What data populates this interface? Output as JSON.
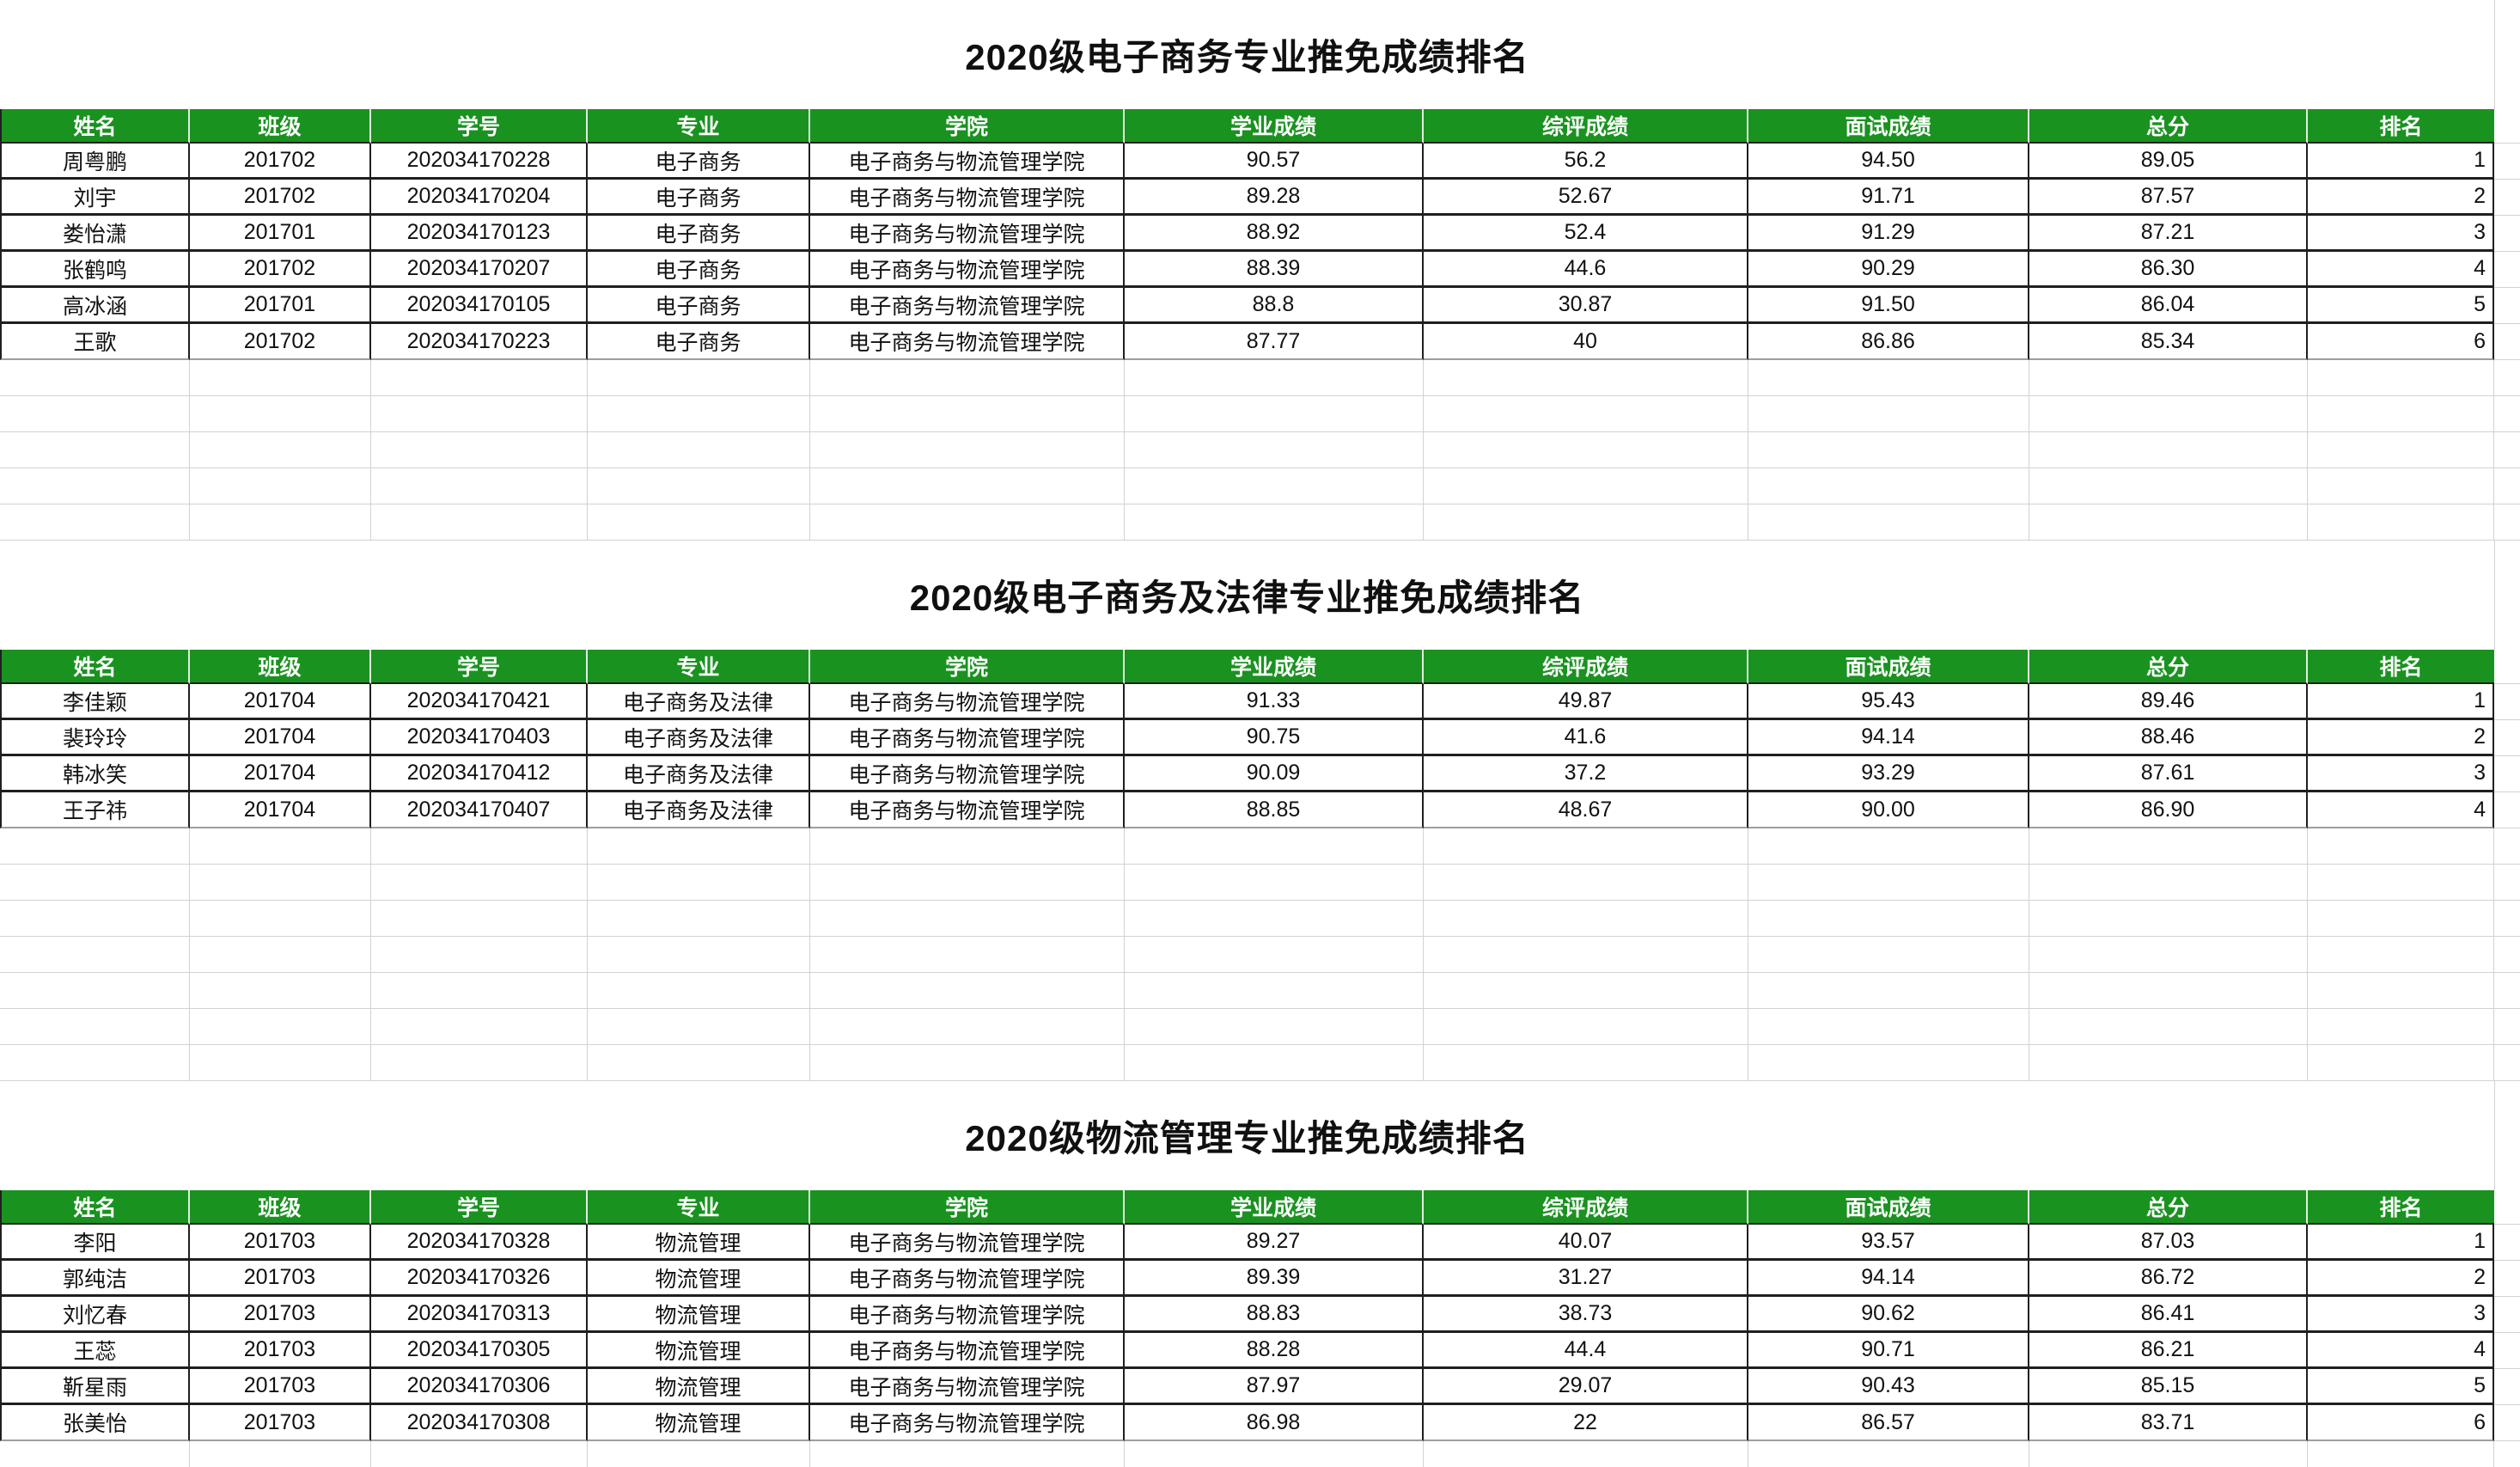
{
  "colors": {
    "header_bg": "#1a9220",
    "header_text": "#ffffff"
  },
  "columns": [
    "姓名",
    "班级",
    "学号",
    "专业",
    "学院",
    "学业成绩",
    "综评成绩",
    "面试成绩",
    "总分",
    "排名"
  ],
  "column_keys": [
    "name",
    "class_no",
    "student_id",
    "major",
    "college",
    "academic_score",
    "overall_score",
    "interview_score",
    "total_score",
    "rank"
  ],
  "tables": [
    {
      "title": "2020级电子商务专业推免成绩排名",
      "rows": [
        {
          "name": "周粤鹏",
          "class_no": "201702",
          "student_id": "202034170228",
          "major": "电子商务",
          "college": "电子商务与物流管理学院",
          "academic_score": "90.57",
          "overall_score": "56.2",
          "interview_score": "94.50",
          "total_score": "89.05",
          "rank": "1"
        },
        {
          "name": "刘宇",
          "class_no": "201702",
          "student_id": "202034170204",
          "major": "电子商务",
          "college": "电子商务与物流管理学院",
          "academic_score": "89.28",
          "overall_score": "52.67",
          "interview_score": "91.71",
          "total_score": "87.57",
          "rank": "2"
        },
        {
          "name": "娄怡潇",
          "class_no": "201701",
          "student_id": "202034170123",
          "major": "电子商务",
          "college": "电子商务与物流管理学院",
          "academic_score": "88.92",
          "overall_score": "52.4",
          "interview_score": "91.29",
          "total_score": "87.21",
          "rank": "3"
        },
        {
          "name": "张鹤鸣",
          "class_no": "201702",
          "student_id": "202034170207",
          "major": "电子商务",
          "college": "电子商务与物流管理学院",
          "academic_score": "88.39",
          "overall_score": "44.6",
          "interview_score": "90.29",
          "total_score": "86.30",
          "rank": "4"
        },
        {
          "name": "高冰涵",
          "class_no": "201701",
          "student_id": "202034170105",
          "major": "电子商务",
          "college": "电子商务与物流管理学院",
          "academic_score": "88.8",
          "overall_score": "30.87",
          "interview_score": "91.50",
          "total_score": "86.04",
          "rank": "5"
        },
        {
          "name": "王歌",
          "class_no": "201702",
          "student_id": "202034170223",
          "major": "电子商务",
          "college": "电子商务与物流管理学院",
          "academic_score": "87.77",
          "overall_score": "40",
          "interview_score": "86.86",
          "total_score": "85.34",
          "rank": "6"
        }
      ]
    },
    {
      "title": "2020级电子商务及法律专业推免成绩排名",
      "rows": [
        {
          "name": "李佳颖",
          "class_no": "201704",
          "student_id": "202034170421",
          "major": "电子商务及法律",
          "college": "电子商务与物流管理学院",
          "academic_score": "91.33",
          "overall_score": "49.87",
          "interview_score": "95.43",
          "total_score": "89.46",
          "rank": "1"
        },
        {
          "name": "裴玲玲",
          "class_no": "201704",
          "student_id": "202034170403",
          "major": "电子商务及法律",
          "college": "电子商务与物流管理学院",
          "academic_score": "90.75",
          "overall_score": "41.6",
          "interview_score": "94.14",
          "total_score": "88.46",
          "rank": "2"
        },
        {
          "name": "韩冰笑",
          "class_no": "201704",
          "student_id": "202034170412",
          "major": "电子商务及法律",
          "college": "电子商务与物流管理学院",
          "academic_score": "90.09",
          "overall_score": "37.2",
          "interview_score": "93.29",
          "total_score": "87.61",
          "rank": "3"
        },
        {
          "name": "王子祎",
          "class_no": "201704",
          "student_id": "202034170407",
          "major": "电子商务及法律",
          "college": "电子商务与物流管理学院",
          "academic_score": "88.85",
          "overall_score": "48.67",
          "interview_score": "90.00",
          "total_score": "86.90",
          "rank": "4"
        }
      ]
    },
    {
      "title": "2020级物流管理专业推免成绩排名",
      "rows": [
        {
          "name": "李阳",
          "class_no": "201703",
          "student_id": "202034170328",
          "major": "物流管理",
          "college": "电子商务与物流管理学院",
          "academic_score": "89.27",
          "overall_score": "40.07",
          "interview_score": "93.57",
          "total_score": "87.03",
          "rank": "1"
        },
        {
          "name": "郭纯洁",
          "class_no": "201703",
          "student_id": "202034170326",
          "major": "物流管理",
          "college": "电子商务与物流管理学院",
          "academic_score": "89.39",
          "overall_score": "31.27",
          "interview_score": "94.14",
          "total_score": "86.72",
          "rank": "2"
        },
        {
          "name": "刘忆春",
          "class_no": "201703",
          "student_id": "202034170313",
          "major": "物流管理",
          "college": "电子商务与物流管理学院",
          "academic_score": "88.83",
          "overall_score": "38.73",
          "interview_score": "90.62",
          "total_score": "86.41",
          "rank": "3"
        },
        {
          "name": "王蕊",
          "class_no": "201703",
          "student_id": "202034170305",
          "major": "物流管理",
          "college": "电子商务与物流管理学院",
          "academic_score": "88.28",
          "overall_score": "44.4",
          "interview_score": "90.71",
          "total_score": "86.21",
          "rank": "4"
        },
        {
          "name": "靳星雨",
          "class_no": "201703",
          "student_id": "202034170306",
          "major": "物流管理",
          "college": "电子商务与物流管理学院",
          "academic_score": "87.97",
          "overall_score": "29.07",
          "interview_score": "90.43",
          "total_score": "85.15",
          "rank": "5"
        },
        {
          "name": "张美怡",
          "class_no": "201703",
          "student_id": "202034170308",
          "major": "物流管理",
          "college": "电子商务与物流管理学院",
          "academic_score": "86.98",
          "overall_score": "22",
          "interview_score": "86.57",
          "total_score": "83.71",
          "rank": "6"
        }
      ]
    }
  ]
}
